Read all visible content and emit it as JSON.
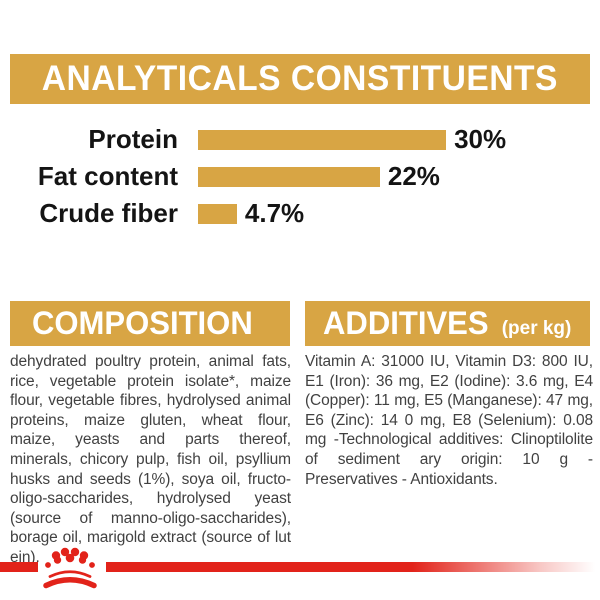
{
  "colors": {
    "gold": "#D8A544",
    "red": "#E2231A",
    "heading_text": "#FFFFFF",
    "chart_text": "#141414",
    "body_text": "#414141",
    "background": "#FFFFFF"
  },
  "banner": {
    "title": "ANALYTICALS CONSTITUENTS"
  },
  "chart_data": {
    "type": "bar",
    "orientation": "horizontal",
    "title": "ANALYTICALS CONSTITUENTS",
    "categories": [
      "Protein",
      "Fat content",
      "Crude fiber"
    ],
    "values": [
      30,
      22,
      4.7
    ],
    "value_labels": [
      "30%",
      "22%",
      "4.7%"
    ],
    "unit": "%",
    "xlim": [
      0,
      30
    ],
    "bar_color": "#D8A544",
    "grid": false,
    "legend": false
  },
  "sections": {
    "composition": {
      "title": "COMPOSITION",
      "body": "dehydrated poultry protein, animal fats, rice, vegetable protein isolate*, maize flour, vegetable fibres, hydrolysed animal proteins, maize gluten, wheat flour, maize, yeasts and parts thereof, minerals, chicory pulp, fish oil, psyllium husks and seeds (1%), soya oil, fructo-oligo-saccharides, hydrolysed yeast (source of manno-oligo-saccharides), borage oil, marigold extract (source of lut ein)."
    },
    "additives": {
      "title": "ADDITIVES",
      "title_suffix": "(per kg)",
      "body": "Vitamin A: 31000 IU, Vitamin D3: 800 IU, E1 (Iron): 36 mg, E2 (Iodine): 3.6 mg, E4 (Copper): 11 mg, E5 (Manganese): 47 mg, E6 (Zinc): 14 0 mg, E8 (Selenium): 0.08 mg -Technological additives: Clinoptilolite of sediment ary origin: 10 g - Preservatives - Antioxidants."
    }
  },
  "footer": {
    "logo": "royal-canin-crown-icon"
  }
}
